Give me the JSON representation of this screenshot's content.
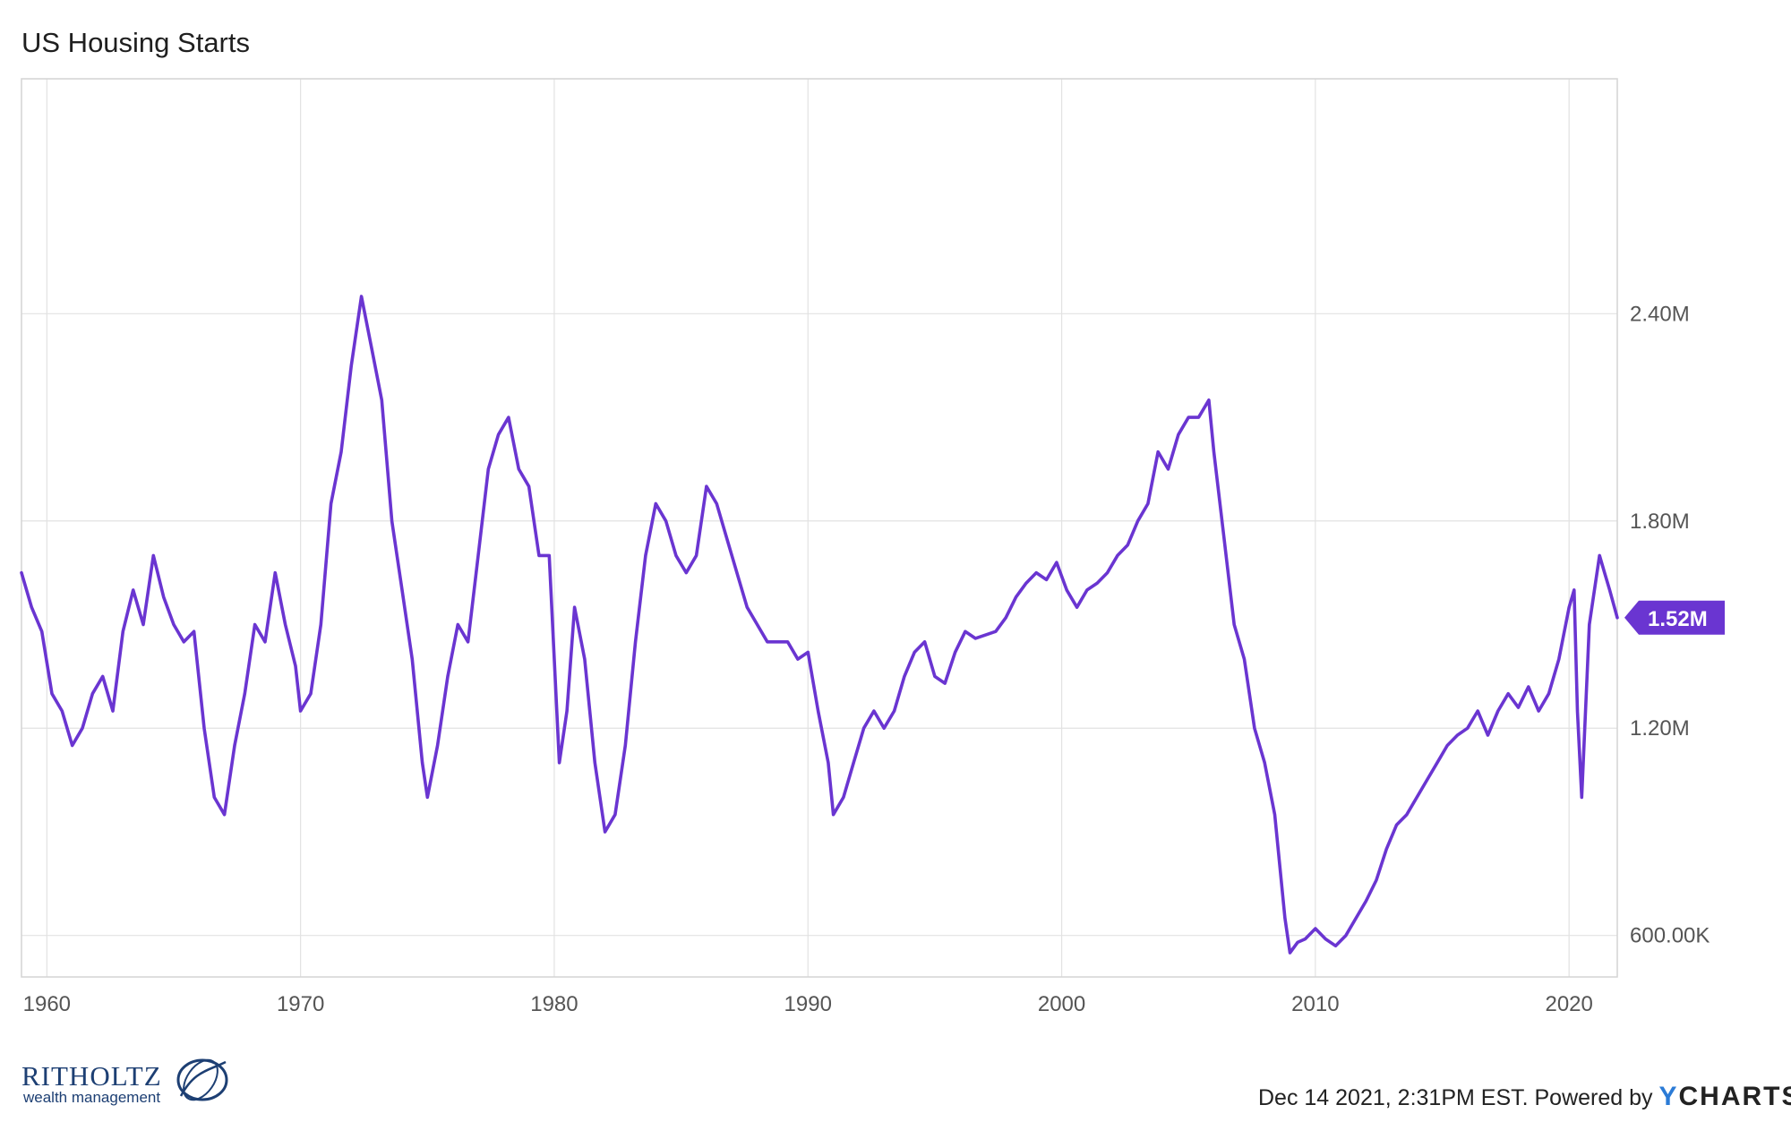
{
  "chart_data": {
    "type": "line",
    "title": "US Housing Starts",
    "xlabel": "",
    "ylabel": "",
    "xlim": [
      1959.0,
      2021.9
    ],
    "ylim": [
      480000,
      3080000
    ],
    "x_ticks": [
      1960,
      1970,
      1980,
      1990,
      2000,
      2010,
      2020
    ],
    "x_tick_labels": [
      "1960",
      "1970",
      "1980",
      "1990",
      "2000",
      "2010",
      "2020"
    ],
    "y_ticks": [
      600000,
      1200000,
      1800000,
      2400000
    ],
    "y_tick_labels": [
      "600.00K",
      "1.20M",
      "1.80M",
      "2.40M"
    ],
    "grid": true,
    "line_color": "#6a35d1",
    "last_value_label": "1.52M",
    "series": [
      {
        "x": [
          1959.0,
          1959.4,
          1959.8,
          1960.2,
          1960.6,
          1961.0,
          1961.4,
          1961.8,
          1962.2,
          1962.6,
          1963.0,
          1963.4,
          1963.8,
          1964.2,
          1964.6,
          1965.0,
          1965.4,
          1965.8,
          1966.2,
          1966.6,
          1967.0,
          1967.4,
          1967.8,
          1968.2,
          1968.6,
          1969.0,
          1969.4,
          1969.8,
          1970.0,
          1970.4,
          1970.8,
          1971.2,
          1971.6,
          1972.0,
          1972.4,
          1972.8,
          1973.2,
          1973.6,
          1974.0,
          1974.4,
          1974.8,
          1975.0,
          1975.4,
          1975.8,
          1976.2,
          1976.6,
          1977.0,
          1977.4,
          1977.8,
          1978.2,
          1978.6,
          1979.0,
          1979.4,
          1979.8,
          1980.2,
          1980.5,
          1980.8,
          1981.2,
          1981.6,
          1982.0,
          1982.4,
          1982.8,
          1983.2,
          1983.6,
          1984.0,
          1984.4,
          1984.8,
          1985.2,
          1985.6,
          1986.0,
          1986.4,
          1986.8,
          1987.2,
          1987.6,
          1988.0,
          1988.4,
          1988.8,
          1989.2,
          1989.6,
          1990.0,
          1990.4,
          1990.8,
          1991.0,
          1991.4,
          1991.8,
          1992.2,
          1992.6,
          1993.0,
          1993.4,
          1993.8,
          1994.2,
          1994.6,
          1995.0,
          1995.4,
          1995.8,
          1996.2,
          1996.6,
          1997.0,
          1997.4,
          1997.8,
          1998.2,
          1998.6,
          1999.0,
          1999.4,
          1999.8,
          2000.2,
          2000.6,
          2001.0,
          2001.4,
          2001.8,
          2002.2,
          2002.6,
          2003.0,
          2003.4,
          2003.8,
          2004.2,
          2004.6,
          2005.0,
          2005.4,
          2005.8,
          2006.0,
          2006.4,
          2006.8,
          2007.2,
          2007.6,
          2008.0,
          2008.4,
          2008.8,
          2009.0,
          2009.3,
          2009.6,
          2010.0,
          2010.4,
          2010.8,
          2011.2,
          2011.6,
          2012.0,
          2012.4,
          2012.8,
          2013.2,
          2013.6,
          2014.0,
          2014.4,
          2014.8,
          2015.2,
          2015.6,
          2016.0,
          2016.4,
          2016.8,
          2017.2,
          2017.6,
          2018.0,
          2018.4,
          2018.8,
          2019.2,
          2019.6,
          2020.0,
          2020.2,
          2020.33,
          2020.5,
          2020.8,
          2021.0,
          2021.2,
          2021.4,
          2021.6,
          2021.9
        ],
        "values": [
          1650000,
          1550000,
          1480000,
          1300000,
          1250000,
          1150000,
          1200000,
          1300000,
          1350000,
          1250000,
          1480000,
          1600000,
          1500000,
          1700000,
          1580000,
          1500000,
          1450000,
          1480000,
          1200000,
          1000000,
          950000,
          1150000,
          1300000,
          1500000,
          1450000,
          1650000,
          1500000,
          1380000,
          1250000,
          1300000,
          1500000,
          1850000,
          2000000,
          2250000,
          2450000,
          2300000,
          2150000,
          1800000,
          1600000,
          1400000,
          1100000,
          1000000,
          1150000,
          1350000,
          1500000,
          1450000,
          1700000,
          1950000,
          2050000,
          2100000,
          1950000,
          1900000,
          1700000,
          1700000,
          1100000,
          1250000,
          1550000,
          1400000,
          1100000,
          900000,
          950000,
          1150000,
          1450000,
          1700000,
          1850000,
          1800000,
          1700000,
          1650000,
          1700000,
          1900000,
          1850000,
          1750000,
          1650000,
          1550000,
          1500000,
          1450000,
          1450000,
          1450000,
          1400000,
          1420000,
          1250000,
          1100000,
          950000,
          1000000,
          1100000,
          1200000,
          1250000,
          1200000,
          1250000,
          1350000,
          1420000,
          1450000,
          1350000,
          1330000,
          1420000,
          1480000,
          1460000,
          1470000,
          1480000,
          1520000,
          1580000,
          1620000,
          1650000,
          1630000,
          1680000,
          1600000,
          1550000,
          1600000,
          1620000,
          1650000,
          1700000,
          1730000,
          1800000,
          1850000,
          2000000,
          1950000,
          2050000,
          2100000,
          2100000,
          2150000,
          2000000,
          1750000,
          1500000,
          1400000,
          1200000,
          1100000,
          950000,
          650000,
          550000,
          580000,
          590000,
          620000,
          590000,
          570000,
          600000,
          650000,
          700000,
          760000,
          850000,
          920000,
          950000,
          1000000,
          1050000,
          1100000,
          1150000,
          1180000,
          1200000,
          1250000,
          1180000,
          1250000,
          1300000,
          1260000,
          1320000,
          1250000,
          1300000,
          1400000,
          1550000,
          1600000,
          1250000,
          1000000,
          1500000,
          1600000,
          1700000,
          1650000,
          1600000,
          1520000
        ]
      }
    ]
  },
  "footer": {
    "timestamp": "Dec 14 2021, 2:31PM EST. Powered by",
    "brand_y": "Y",
    "brand_rest": "CHARTS"
  },
  "logo": {
    "name": "RITHOLTZ",
    "sub": "wealth management"
  },
  "colors": {
    "line": "#6a35d1",
    "grid": "#e2e2e2",
    "brand_blue": "#1d3f73"
  }
}
